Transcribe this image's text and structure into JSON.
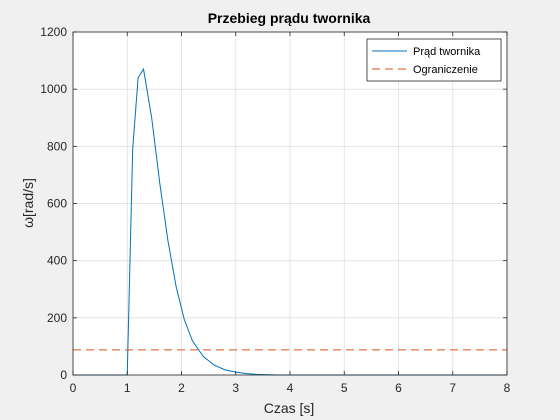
{
  "chart_data": {
    "type": "line",
    "title": "Przebieg prądu twornika",
    "xlabel": "Czas [s]",
    "ylabel": "ω[rad/s]",
    "xlim": [
      0,
      8
    ],
    "ylim": [
      0,
      1200
    ],
    "x_ticks": [
      0,
      1,
      2,
      3,
      4,
      5,
      6,
      7,
      8
    ],
    "y_ticks": [
      0,
      200,
      400,
      600,
      800,
      1000,
      1200
    ],
    "grid": true,
    "legend_position": "top-right",
    "series": [
      {
        "name": "Prąd twornika",
        "color": "#0072bd",
        "style": "solid",
        "x": [
          0,
          1.0,
          1.1,
          1.2,
          1.3,
          1.45,
          1.6,
          1.75,
          1.9,
          2.05,
          2.2,
          2.4,
          2.6,
          2.8,
          3.0,
          3.2,
          3.4,
          3.6,
          3.8,
          4.0,
          5.0,
          6.0,
          7.0,
          8.0
        ],
        "y": [
          0,
          0,
          790,
          1040,
          1070,
          900,
          670,
          470,
          310,
          195,
          120,
          65,
          35,
          18,
          10,
          5,
          2,
          1,
          0,
          0,
          0,
          0,
          0,
          0
        ]
      },
      {
        "name": "Ograniczenie",
        "color": "#d95319",
        "style": "dashed",
        "x": [
          0,
          8
        ],
        "y": [
          88,
          88
        ]
      }
    ]
  }
}
